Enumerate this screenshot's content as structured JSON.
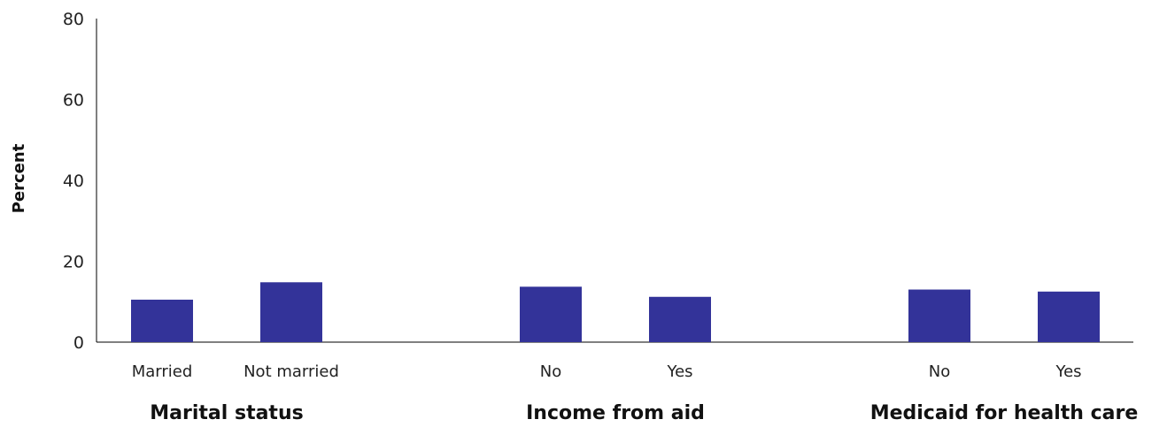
{
  "chart_data": {
    "type": "bar",
    "ylabel": "Percent",
    "ylim": [
      0,
      80
    ],
    "yticks": [
      0,
      20,
      40,
      60,
      80
    ],
    "grid": false,
    "bar_color": "#333399",
    "groups": [
      {
        "label": "Marital status",
        "categories": [
          "Married",
          "Not married"
        ],
        "values": [
          10.5,
          14.8
        ]
      },
      {
        "label": "Income from aid",
        "categories": [
          "No",
          "Yes"
        ],
        "values": [
          13.7,
          11.2
        ]
      },
      {
        "label": "Medicaid for health care",
        "categories": [
          "No",
          "Yes"
        ],
        "values": [
          13.0,
          12.5
        ]
      }
    ]
  }
}
